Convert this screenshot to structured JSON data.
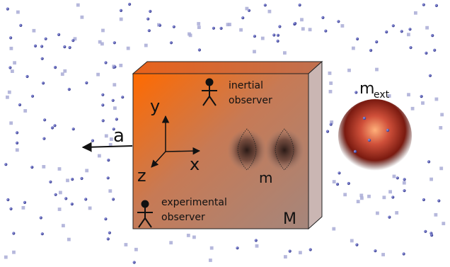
{
  "labels": {
    "acceleration": "a",
    "axis_x": "x",
    "axis_y": "y",
    "axis_z": "z",
    "inertial_observer_line1": "inertial",
    "inertial_observer_line2": "observer",
    "experimental_observer_line1": "experimental",
    "experimental_observer_line2": "observer",
    "small_mass": "m",
    "box_mass": "M",
    "external_mass_base": "m",
    "external_mass_sub": "ext"
  },
  "colors": {
    "box_front_dark": "#ff6a00",
    "box_front_light": "#b48678",
    "box_side": "#cab6b3",
    "box_top": "#ed6d19",
    "particle_blue": "#4a4ea6",
    "particle_light": "#a9acd6",
    "sphere_core": "#ff9a66",
    "sphere_mid": "#9a2a16",
    "sphere_edge": "#3a0a04"
  },
  "icons": {
    "observer": "stick-figure-icon",
    "arrow": "arrow-left-icon"
  }
}
